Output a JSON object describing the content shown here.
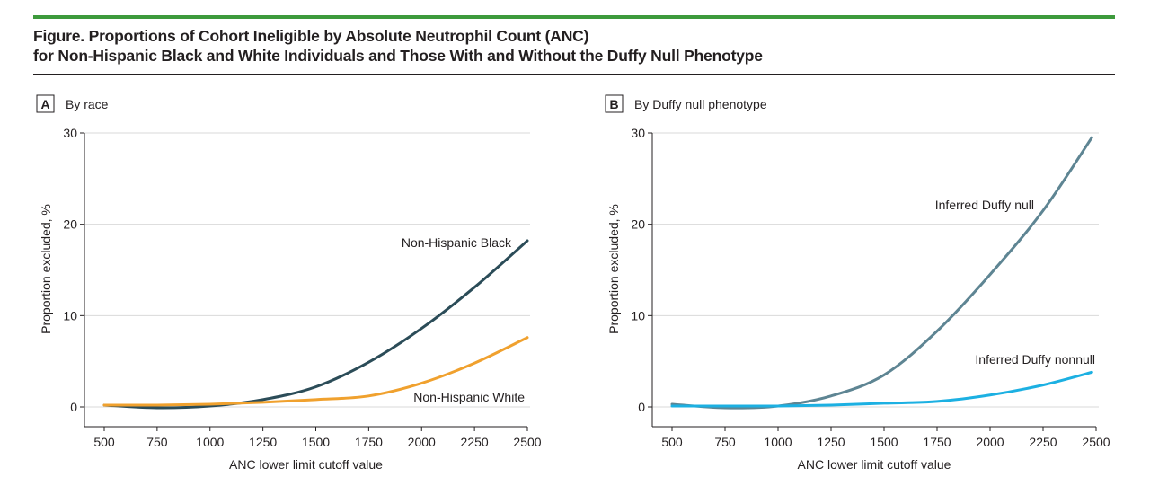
{
  "figure": {
    "title_line1": "Figure. Proportions of Cohort Ineligible by Absolute Neutrophil Count (ANC)",
    "title_line2": "for Non-Hispanic Black and White Individuals and Those With and Without the Duffy Null Phenotype",
    "accent_color": "#3d9a3c"
  },
  "chart_data": [
    {
      "type": "line",
      "panel_letter": "A",
      "title": "By race",
      "xlabel": "ANC lower limit cutoff value",
      "ylabel": "Proportion excluded, %",
      "xlim": [
        500,
        2500
      ],
      "ylim": [
        0,
        30
      ],
      "xticks": [
        "500",
        "750",
        "1000",
        "1250",
        "1500",
        "1750",
        "2000",
        "2250",
        "2500"
      ],
      "yticks": [
        "0",
        "10",
        "20",
        "30"
      ],
      "grid": "horizontal",
      "x": [
        500,
        750,
        1000,
        1250,
        1500,
        1750,
        2000,
        2250,
        2500
      ],
      "series": [
        {
          "name": "Non-Hispanic Black",
          "color": "#2b4c58",
          "values": [
            0.2,
            -0.1,
            0.1,
            0.8,
            2.2,
            4.9,
            8.6,
            13.1,
            18.2
          ]
        },
        {
          "name": "Non-Hispanic White",
          "color": "#f0a12e",
          "values": [
            0.2,
            0.2,
            0.3,
            0.5,
            0.8,
            1.2,
            2.6,
            4.8,
            7.6
          ]
        }
      ]
    },
    {
      "type": "line",
      "panel_letter": "B",
      "title": "By Duffy null phenotype",
      "xlabel": "ANC lower limit cutoff value",
      "ylabel": "Proportion excluded, %",
      "xlim": [
        500,
        2500
      ],
      "ylim": [
        0,
        30
      ],
      "xticks": [
        "500",
        "750",
        "1000",
        "1250",
        "1500",
        "1750",
        "2000",
        "2250",
        "2500"
      ],
      "yticks": [
        "0",
        "10",
        "20",
        "30"
      ],
      "grid": "horizontal",
      "x": [
        500,
        750,
        1000,
        1250,
        1500,
        1750,
        2000,
        2250,
        2480
      ],
      "series": [
        {
          "name": "Inferred Duffy null",
          "color": "#5e8593",
          "values": [
            0.3,
            -0.1,
            0.1,
            1.2,
            3.5,
            8.3,
            14.5,
            21.5,
            29.5
          ]
        },
        {
          "name": "Inferred Duffy nonnull",
          "color": "#1cb0e2",
          "values": [
            0.1,
            0.1,
            0.1,
            0.2,
            0.4,
            0.6,
            1.3,
            2.4,
            3.8
          ]
        }
      ]
    }
  ]
}
